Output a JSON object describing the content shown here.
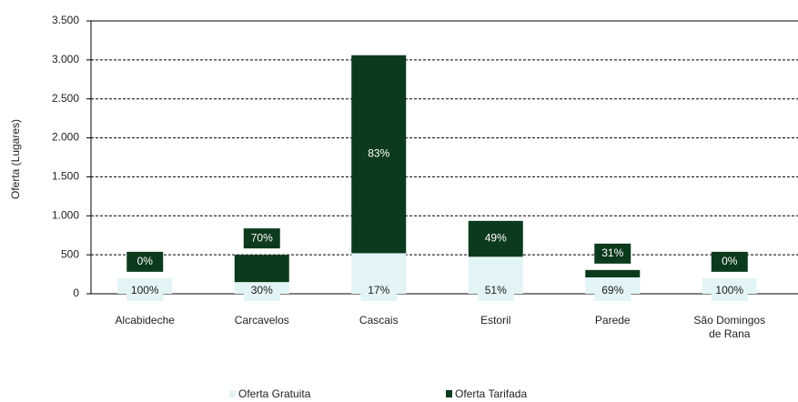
{
  "chart_data": {
    "type": "bar",
    "stacked": true,
    "y_label": "Oferta (Lugares)",
    "categories": [
      "Alcabideche",
      "Carcavelos",
      "Cascais",
      "Estoril",
      "Parede",
      "São Domingos de Rana"
    ],
    "series": [
      {
        "name": "Oferta Gratuita",
        "color": "#e3f4f6",
        "label_color": "#1a1a1a",
        "values": [
          200,
          150,
          520,
          475,
          210,
          200
        ],
        "labels": [
          "100%",
          "30%",
          "17%",
          "51%",
          "69%",
          "100%"
        ]
      },
      {
        "name": "Oferta Tarifada",
        "color": "#0c3a1c",
        "label_color": "#ffffff",
        "values": [
          0,
          350,
          2540,
          460,
          95,
          0
        ],
        "labels": [
          "0%",
          "70%",
          "83%",
          "49%",
          "31%",
          "0%"
        ]
      }
    ],
    "ylim": [
      0,
      3500
    ],
    "yticks": [
      0,
      500,
      {
        "value": 1000,
        "label": "1.000"
      },
      {
        "value": 1500,
        "label": "1.500"
      },
      {
        "value": 2000,
        "label": "2.000"
      },
      {
        "value": 2500,
        "label": "2.500"
      },
      {
        "value": 3000,
        "label": "3.000"
      },
      {
        "value": 3500,
        "label": "3.500"
      }
    ],
    "grid": true
  }
}
